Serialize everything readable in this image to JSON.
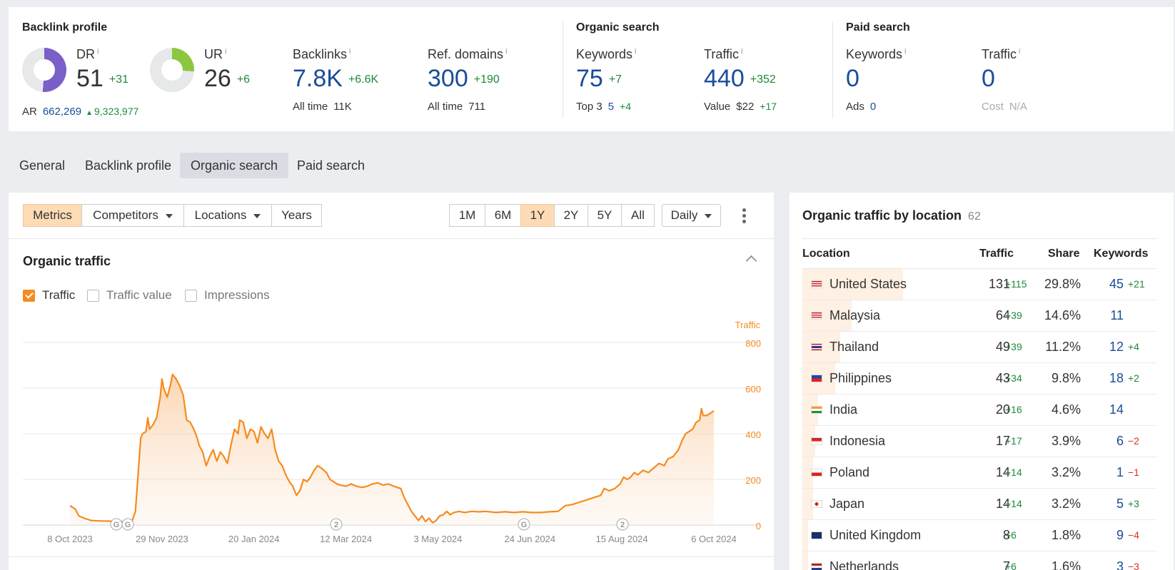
{
  "backlink_profile": {
    "title": "Backlink profile",
    "dr": {
      "label": "DR",
      "value": "51",
      "delta": "+31",
      "donut_fraction": 0.51,
      "donut_color": "#7b5fc8"
    },
    "ur": {
      "label": "UR",
      "value": "26",
      "delta": "+6",
      "donut_fraction": 0.26,
      "donut_color": "#8cc63f"
    },
    "ar": {
      "label": "AR",
      "value": "662,269",
      "delta": "9,323,977"
    },
    "backlinks": {
      "label": "Backlinks",
      "value": "7.8K",
      "delta": "+6.6K",
      "sub_label": "All time",
      "sub_value": "11K"
    },
    "ref_domains": {
      "label": "Ref. domains",
      "value": "300",
      "delta": "+190",
      "sub_label": "All time",
      "sub_value": "711"
    }
  },
  "organic_search": {
    "title": "Organic search",
    "keywords": {
      "label": "Keywords",
      "value": "75",
      "delta": "+7",
      "sub_label": "Top 3",
      "sub_value": "5",
      "sub_delta": "+4"
    },
    "traffic": {
      "label": "Traffic",
      "value": "440",
      "delta": "+352",
      "sub_label": "Value",
      "sub_value": "$22",
      "sub_delta": "+17"
    }
  },
  "paid_search": {
    "title": "Paid search",
    "keywords": {
      "label": "Keywords",
      "value": "0",
      "sub_label": "Ads",
      "sub_value": "0"
    },
    "traffic": {
      "label": "Traffic",
      "value": "0",
      "sub_label": "Cost",
      "sub_value": "N/A"
    }
  },
  "info_mark": "i",
  "tabs": [
    {
      "label": "General",
      "active": false
    },
    {
      "label": "Backlink profile",
      "active": false
    },
    {
      "label": "Organic search",
      "active": true
    },
    {
      "label": "Paid search",
      "active": false
    }
  ],
  "toolbar": {
    "metrics": "Metrics",
    "competitors": "Competitors",
    "locations": "Locations",
    "years": "Years",
    "ranges": [
      "1M",
      "6M",
      "1Y",
      "2Y",
      "5Y",
      "All"
    ],
    "active_range": "1Y",
    "interval": "Daily"
  },
  "chart_section": {
    "title": "Organic traffic",
    "checkboxes": [
      {
        "label": "Traffic",
        "checked": true
      },
      {
        "label": "Traffic value",
        "checked": false
      },
      {
        "label": "Impressions",
        "checked": false
      }
    ],
    "markers": [
      "G",
      "G",
      "2",
      "G",
      "2"
    ]
  },
  "chart_data": {
    "type": "area",
    "series": [
      {
        "name": "Traffic",
        "color": "#f58b1f"
      }
    ],
    "ylabel": "Traffic",
    "ylim": [
      0,
      800
    ],
    "yticks": [
      "0",
      "200",
      "400",
      "600",
      "800"
    ],
    "xticks": [
      "8 Oct 2023",
      "29 Nov 2023",
      "20 Jan 2024",
      "12 Mar 2024",
      "3 May 2024",
      "24 Jun 2024",
      "15 Aug 2024",
      "6 Oct 2024"
    ],
    "x_start": "2023-10-08",
    "points": [
      [
        "2023-10-08",
        85
      ],
      [
        "2023-10-11",
        70
      ],
      [
        "2023-10-13",
        40
      ],
      [
        "2023-10-16",
        30
      ],
      [
        "2023-10-20",
        20
      ],
      [
        "2023-10-25",
        18
      ],
      [
        "2023-11-01",
        17
      ],
      [
        "2023-11-05",
        18
      ],
      [
        "2023-11-08",
        10
      ],
      [
        "2023-11-10",
        20
      ],
      [
        "2023-11-12",
        15
      ],
      [
        "2023-11-14",
        60
      ],
      [
        "2023-11-16",
        270
      ],
      [
        "2023-11-17",
        380
      ],
      [
        "2023-11-18",
        400
      ],
      [
        "2023-11-20",
        410
      ],
      [
        "2023-11-21",
        470
      ],
      [
        "2023-11-22",
        420
      ],
      [
        "2023-11-23",
        430
      ],
      [
        "2023-11-24",
        440
      ],
      [
        "2023-11-26",
        470
      ],
      [
        "2023-11-28",
        560
      ],
      [
        "2023-11-29",
        640
      ],
      [
        "2023-11-30",
        600
      ],
      [
        "2023-12-01",
        580
      ],
      [
        "2023-12-02",
        560
      ],
      [
        "2023-12-04",
        620
      ],
      [
        "2023-12-05",
        660
      ],
      [
        "2023-12-07",
        640
      ],
      [
        "2023-12-09",
        610
      ],
      [
        "2023-12-11",
        570
      ],
      [
        "2023-12-13",
        460
      ],
      [
        "2023-12-15",
        450
      ],
      [
        "2023-12-17",
        420
      ],
      [
        "2023-12-19",
        380
      ],
      [
        "2023-12-20",
        350
      ],
      [
        "2023-12-22",
        320
      ],
      [
        "2023-12-24",
        260
      ],
      [
        "2023-12-26",
        300
      ],
      [
        "2023-12-28",
        330
      ],
      [
        "2023-12-30",
        280
      ],
      [
        "2024-01-01",
        320
      ],
      [
        "2024-01-03",
        300
      ],
      [
        "2024-01-05",
        270
      ],
      [
        "2024-01-07",
        350
      ],
      [
        "2024-01-09",
        420
      ],
      [
        "2024-01-11",
        400
      ],
      [
        "2024-01-12",
        460
      ],
      [
        "2024-01-14",
        450
      ],
      [
        "2024-01-16",
        380
      ],
      [
        "2024-01-18",
        420
      ],
      [
        "2024-01-20",
        410
      ],
      [
        "2024-01-22",
        360
      ],
      [
        "2024-01-24",
        430
      ],
      [
        "2024-01-26",
        400
      ],
      [
        "2024-01-28",
        380
      ],
      [
        "2024-01-30",
        420
      ],
      [
        "2024-02-01",
        330
      ],
      [
        "2024-02-03",
        280
      ],
      [
        "2024-02-05",
        260
      ],
      [
        "2024-02-07",
        220
      ],
      [
        "2024-02-09",
        190
      ],
      [
        "2024-02-11",
        170
      ],
      [
        "2024-02-13",
        130
      ],
      [
        "2024-02-15",
        150
      ],
      [
        "2024-02-17",
        200
      ],
      [
        "2024-02-19",
        190
      ],
      [
        "2024-02-21",
        210
      ],
      [
        "2024-02-23",
        240
      ],
      [
        "2024-02-25",
        260
      ],
      [
        "2024-02-27",
        250
      ],
      [
        "2024-03-01",
        230
      ],
      [
        "2024-03-03",
        200
      ],
      [
        "2024-03-05",
        190
      ],
      [
        "2024-03-07",
        180
      ],
      [
        "2024-03-09",
        175
      ],
      [
        "2024-03-12",
        170
      ],
      [
        "2024-03-15",
        180
      ],
      [
        "2024-03-18",
        170
      ],
      [
        "2024-03-21",
        165
      ],
      [
        "2024-03-24",
        170
      ],
      [
        "2024-03-27",
        180
      ],
      [
        "2024-03-30",
        185
      ],
      [
        "2024-04-02",
        175
      ],
      [
        "2024-04-05",
        180
      ],
      [
        "2024-04-08",
        170
      ],
      [
        "2024-04-10",
        165
      ],
      [
        "2024-04-12",
        160
      ],
      [
        "2024-04-14",
        120
      ],
      [
        "2024-04-16",
        90
      ],
      [
        "2024-04-18",
        60
      ],
      [
        "2024-04-20",
        40
      ],
      [
        "2024-04-22",
        20
      ],
      [
        "2024-04-24",
        40
      ],
      [
        "2024-04-26",
        15
      ],
      [
        "2024-04-28",
        30
      ],
      [
        "2024-04-30",
        10
      ],
      [
        "2024-05-02",
        20
      ],
      [
        "2024-05-04",
        40
      ],
      [
        "2024-05-06",
        45
      ],
      [
        "2024-05-08",
        60
      ],
      [
        "2024-05-10",
        45
      ],
      [
        "2024-05-12",
        55
      ],
      [
        "2024-05-15",
        60
      ],
      [
        "2024-05-18",
        55
      ],
      [
        "2024-05-22",
        60
      ],
      [
        "2024-05-26",
        58
      ],
      [
        "2024-05-30",
        60
      ],
      [
        "2024-06-05",
        55
      ],
      [
        "2024-06-10",
        58
      ],
      [
        "2024-06-15",
        55
      ],
      [
        "2024-06-20",
        58
      ],
      [
        "2024-06-25",
        55
      ],
      [
        "2024-06-30",
        55
      ],
      [
        "2024-07-05",
        58
      ],
      [
        "2024-07-10",
        60
      ],
      [
        "2024-07-14",
        85
      ],
      [
        "2024-07-18",
        90
      ],
      [
        "2024-07-22",
        100
      ],
      [
        "2024-07-26",
        110
      ],
      [
        "2024-07-30",
        120
      ],
      [
        "2024-08-03",
        130
      ],
      [
        "2024-08-05",
        160
      ],
      [
        "2024-08-08",
        150
      ],
      [
        "2024-08-11",
        160
      ],
      [
        "2024-08-14",
        180
      ],
      [
        "2024-08-16",
        210
      ],
      [
        "2024-08-18",
        200
      ],
      [
        "2024-08-20",
        210
      ],
      [
        "2024-08-22",
        230
      ],
      [
        "2024-08-24",
        220
      ],
      [
        "2024-08-27",
        240
      ],
      [
        "2024-08-30",
        230
      ],
      [
        "2024-09-02",
        250
      ],
      [
        "2024-09-05",
        270
      ],
      [
        "2024-09-08",
        260
      ],
      [
        "2024-09-10",
        290
      ],
      [
        "2024-09-13",
        300
      ],
      [
        "2024-09-16",
        330
      ],
      [
        "2024-09-18",
        370
      ],
      [
        "2024-09-20",
        400
      ],
      [
        "2024-09-22",
        410
      ],
      [
        "2024-09-24",
        420
      ],
      [
        "2024-09-26",
        450
      ],
      [
        "2024-09-28",
        460
      ],
      [
        "2024-09-29",
        510
      ],
      [
        "2024-09-30",
        480
      ],
      [
        "2024-10-02",
        480
      ],
      [
        "2024-10-04",
        490
      ],
      [
        "2024-10-06",
        500
      ]
    ]
  },
  "locations": {
    "title": "Organic traffic by location",
    "count": "62",
    "headers": {
      "location": "Location",
      "traffic": "Traffic",
      "share": "Share",
      "keywords": "Keywords"
    },
    "rows": [
      {
        "name": "United States",
        "traffic": "131",
        "traffic_delta": "+115",
        "share": "29.8%",
        "share_fraction": 0.298,
        "keywords": "45",
        "keywords_delta": "+21",
        "flag": "us"
      },
      {
        "name": "Malaysia",
        "traffic": "64",
        "traffic_delta": "+39",
        "share": "14.6%",
        "share_fraction": 0.146,
        "keywords": "11",
        "keywords_delta": "",
        "flag": "my"
      },
      {
        "name": "Thailand",
        "traffic": "49",
        "traffic_delta": "+39",
        "share": "11.2%",
        "share_fraction": 0.112,
        "keywords": "12",
        "keywords_delta": "+4",
        "flag": "th"
      },
      {
        "name": "Philippines",
        "traffic": "43",
        "traffic_delta": "+34",
        "share": "9.8%",
        "share_fraction": 0.098,
        "keywords": "18",
        "keywords_delta": "+2",
        "flag": "ph"
      },
      {
        "name": "India",
        "traffic": "20",
        "traffic_delta": "+16",
        "share": "4.6%",
        "share_fraction": 0.046,
        "keywords": "14",
        "keywords_delta": "",
        "flag": "in"
      },
      {
        "name": "Indonesia",
        "traffic": "17",
        "traffic_delta": "+17",
        "share": "3.9%",
        "share_fraction": 0.039,
        "keywords": "6",
        "keywords_delta": "−2",
        "flag": "id"
      },
      {
        "name": "Poland",
        "traffic": "14",
        "traffic_delta": "+14",
        "share": "3.2%",
        "share_fraction": 0.032,
        "keywords": "1",
        "keywords_delta": "−1",
        "flag": "pl"
      },
      {
        "name": "Japan",
        "traffic": "14",
        "traffic_delta": "+14",
        "share": "3.2%",
        "share_fraction": 0.032,
        "keywords": "5",
        "keywords_delta": "+3",
        "flag": "jp"
      },
      {
        "name": "United Kingdom",
        "traffic": "8",
        "traffic_delta": "+6",
        "share": "1.8%",
        "share_fraction": 0.018,
        "keywords": "9",
        "keywords_delta": "−4",
        "flag": "gb"
      },
      {
        "name": "Netherlands",
        "traffic": "7",
        "traffic_delta": "+6",
        "share": "1.6%",
        "share_fraction": 0.016,
        "keywords": "3",
        "keywords_delta": "−3",
        "flag": "nl"
      }
    ]
  }
}
